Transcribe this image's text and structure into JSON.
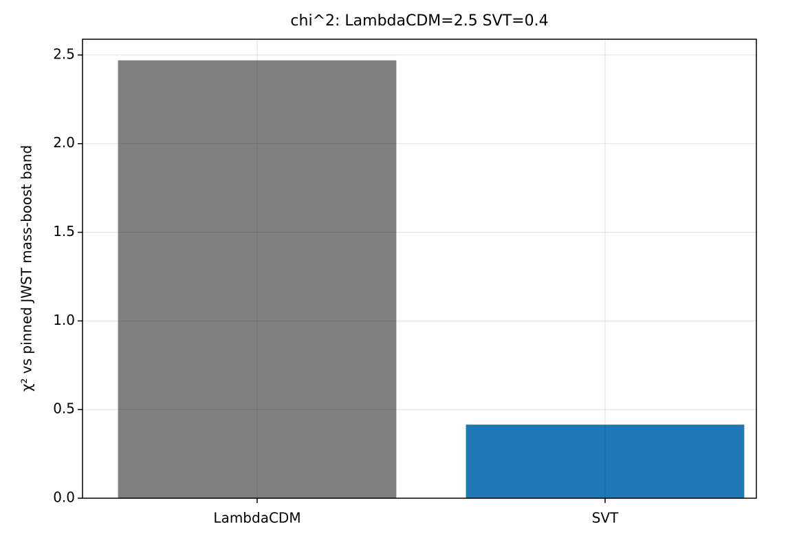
{
  "chart_data": {
    "type": "bar",
    "title": "chi^2: LambdaCDM=2.5  SVT=0.4",
    "y_label": "χ² vs pinned JWST mass-boost band",
    "categories": [
      "LambdaCDM",
      "SVT"
    ],
    "values": [
      2.47,
      0.415
    ],
    "colors": [
      "#808080",
      "#1f77b4"
    ],
    "ylim": [
      0,
      2.589
    ],
    "yticks": [
      {
        "value": 0,
        "label": "0.0"
      },
      0.5,
      {
        "value": 1,
        "label": "1.0"
      },
      1.5,
      {
        "value": 2,
        "label": "2.0"
      },
      2.5
    ],
    "grid": true
  }
}
